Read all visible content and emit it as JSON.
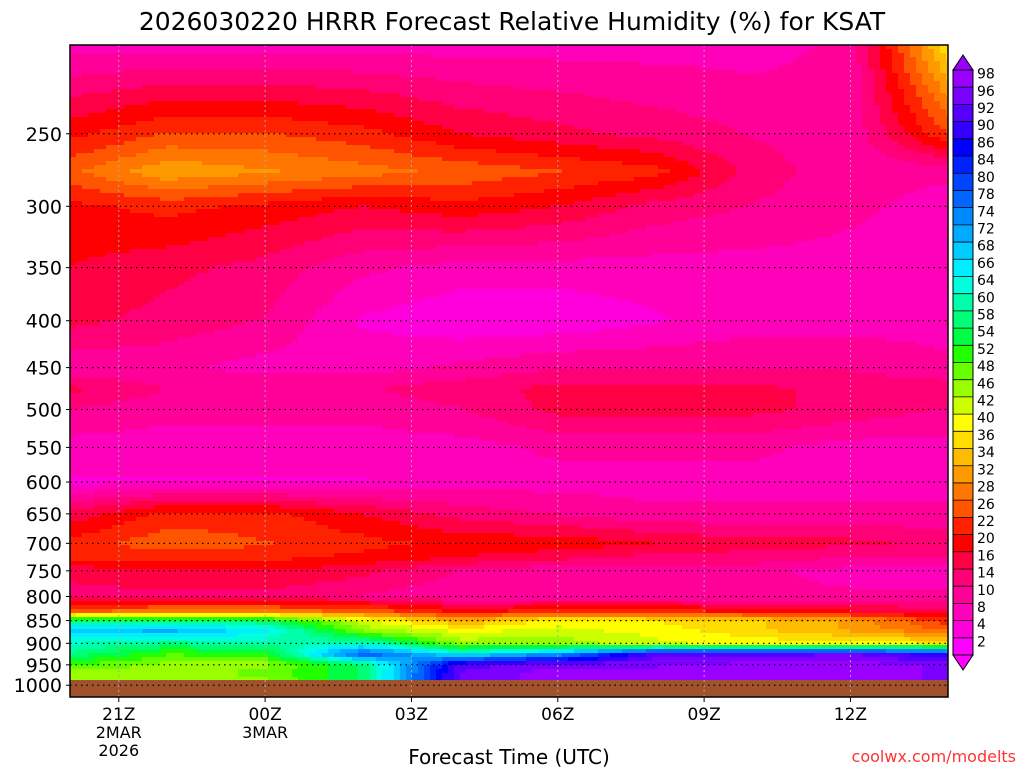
{
  "chart_data": {
    "type": "heatmap",
    "title": "2026030220 HRRR Forecast Relative Humidity (%) for KSAT",
    "xlabel": "Forecast Time (UTC)",
    "ylabel": "",
    "credit": "coolwx.com/modelts",
    "y_axis": {
      "scale": "log",
      "reversed": true,
      "range": [
        200,
        1030
      ],
      "ticks": [
        250,
        300,
        350,
        400,
        450,
        500,
        550,
        600,
        650,
        700,
        750,
        800,
        850,
        900,
        950,
        1000
      ]
    },
    "x_axis": {
      "range_hours": [
        -1,
        17
      ],
      "ticks": [
        {
          "hour": 0,
          "label": "21Z",
          "sub": [
            "2MAR",
            "2026"
          ]
        },
        {
          "hour": 3,
          "label": "00Z",
          "sub": [
            "3MAR"
          ]
        },
        {
          "hour": 6,
          "label": "03Z",
          "sub": []
        },
        {
          "hour": 9,
          "label": "06Z",
          "sub": []
        },
        {
          "hour": 12,
          "label": "09Z",
          "sub": []
        },
        {
          "hour": 15,
          "label": "12Z",
          "sub": []
        }
      ]
    },
    "grid": true,
    "surface_pressure": 987,
    "colorbar": {
      "labels": [
        "98",
        "96",
        "92",
        "90",
        "86",
        "84",
        "80",
        "78",
        "74",
        "72",
        "68",
        "66",
        "64",
        "60",
        "58",
        "54",
        "52",
        "48",
        "46",
        "42",
        "40",
        "36",
        "34",
        "32",
        "28",
        "26",
        "22",
        "20",
        "16",
        "14",
        "10",
        "8",
        "4",
        "2"
      ],
      "colors": [
        "#9900ff",
        "#7a00ff",
        "#5500ff",
        "#3300ff",
        "#0000ff",
        "#0022ff",
        "#0044ff",
        "#0066ff",
        "#0088ff",
        "#00aaff",
        "#00ccff",
        "#00eeff",
        "#00ffdd",
        "#00ffaa",
        "#00ff77",
        "#00ff44",
        "#22ff00",
        "#66ff00",
        "#99ff00",
        "#ccff00",
        "#ffff00",
        "#ffdd00",
        "#ffbb00",
        "#ff9900",
        "#ff7700",
        "#ff5500",
        "#ff2200",
        "#ff0000",
        "#ff0044",
        "#ff0077",
        "#ff0099",
        "#ff00bb",
        "#ff00dd",
        "#ff00ff"
      ]
    },
    "levels": [
      200,
      250,
      275,
      300,
      350,
      400,
      450,
      475,
      500,
      550,
      600,
      650,
      700,
      725,
      750,
      800,
      830,
      850,
      870,
      900,
      925,
      950,
      970,
      990
    ],
    "times": [
      -1,
      1,
      3,
      5,
      7,
      9,
      11,
      13,
      15,
      17
    ],
    "rh": [
      [
        8,
        8,
        8,
        8,
        8,
        8,
        8,
        8,
        10,
        38
      ],
      [
        20,
        24,
        24,
        22,
        18,
        16,
        14,
        12,
        10,
        24
      ],
      [
        26,
        32,
        30,
        28,
        26,
        24,
        22,
        14,
        10,
        10
      ],
      [
        20,
        22,
        20,
        18,
        20,
        18,
        14,
        12,
        10,
        8
      ],
      [
        18,
        16,
        14,
        10,
        8,
        8,
        8,
        8,
        8,
        8
      ],
      [
        16,
        14,
        12,
        6,
        4,
        4,
        6,
        8,
        8,
        8
      ],
      [
        10,
        10,
        8,
        8,
        10,
        12,
        12,
        12,
        12,
        10
      ],
      [
        16,
        12,
        12,
        12,
        14,
        16,
        16,
        16,
        14,
        14
      ],
      [
        12,
        10,
        10,
        10,
        12,
        16,
        16,
        16,
        14,
        12
      ],
      [
        8,
        8,
        8,
        8,
        8,
        10,
        10,
        10,
        8,
        8
      ],
      [
        6,
        6,
        6,
        6,
        8,
        8,
        8,
        8,
        8,
        8
      ],
      [
        16,
        22,
        22,
        18,
        14,
        12,
        10,
        10,
        10,
        10
      ],
      [
        22,
        26,
        24,
        22,
        20,
        20,
        18,
        16,
        16,
        14
      ],
      [
        22,
        22,
        22,
        20,
        18,
        16,
        14,
        14,
        12,
        12
      ],
      [
        16,
        18,
        18,
        16,
        12,
        10,
        10,
        10,
        8,
        8
      ],
      [
        14,
        14,
        14,
        12,
        10,
        10,
        10,
        10,
        10,
        10
      ],
      [
        26,
        28,
        28,
        26,
        20,
        22,
        22,
        20,
        18,
        16
      ],
      [
        56,
        56,
        56,
        42,
        32,
        40,
        38,
        36,
        32,
        22
      ],
      [
        70,
        72,
        66,
        46,
        40,
        42,
        40,
        36,
        32,
        26
      ],
      [
        62,
        58,
        60,
        62,
        46,
        46,
        42,
        40,
        40,
        38
      ],
      [
        58,
        50,
        52,
        80,
        66,
        74,
        92,
        92,
        94,
        88
      ],
      [
        50,
        46,
        46,
        56,
        92,
        96,
        96,
        98,
        98,
        96
      ],
      [
        46,
        46,
        48,
        56,
        94,
        98,
        98,
        98,
        98,
        96
      ],
      [
        44,
        46,
        46,
        56,
        94,
        98,
        98,
        98,
        98,
        96
      ]
    ]
  }
}
